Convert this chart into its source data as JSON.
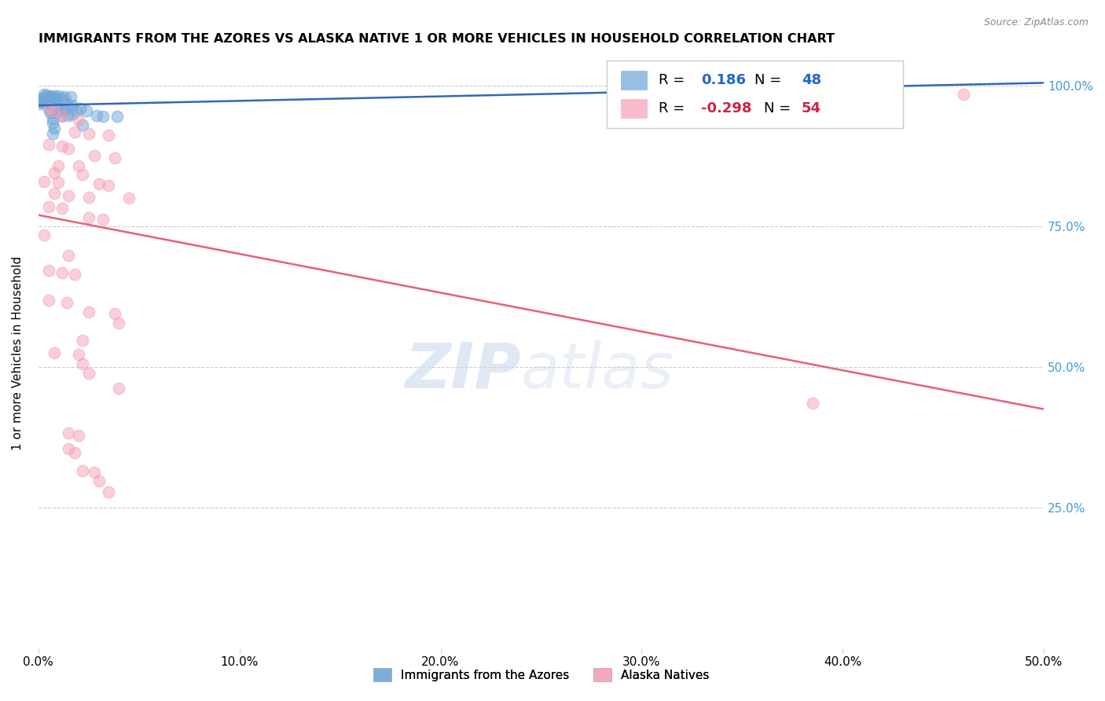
{
  "title": "IMMIGRANTS FROM THE AZORES VS ALASKA NATIVE 1 OR MORE VEHICLES IN HOUSEHOLD CORRELATION CHART",
  "source": "Source: ZipAtlas.com",
  "ylabel": "1 or more Vehicles in Household",
  "xlim": [
    0.0,
    0.5
  ],
  "ylim": [
    0.0,
    1.05
  ],
  "xtick_labels": [
    "0.0%",
    "10.0%",
    "20.0%",
    "30.0%",
    "40.0%",
    "50.0%"
  ],
  "xtick_values": [
    0.0,
    0.1,
    0.2,
    0.3,
    0.4,
    0.5
  ],
  "ytick_labels": [
    "25.0%",
    "50.0%",
    "75.0%",
    "100.0%"
  ],
  "ytick_values": [
    0.25,
    0.5,
    0.75,
    1.0
  ],
  "legend_labels": [
    "Immigrants from the Azores",
    "Alaska Natives"
  ],
  "blue_R": "0.186",
  "blue_N": "48",
  "pink_R": "-0.298",
  "pink_N": "54",
  "blue_color": "#6ea6d8",
  "pink_color": "#f4a0b5",
  "blue_line_color": "#3366bb",
  "pink_line_color": "#e8607a",
  "blue_line_x": [
    0.0,
    0.5
  ],
  "blue_line_y": [
    0.965,
    1.005
  ],
  "pink_line_x": [
    0.0,
    0.5
  ],
  "pink_line_y": [
    0.77,
    0.425
  ],
  "blue_points": [
    [
      0.003,
      0.985
    ],
    [
      0.004,
      0.983
    ],
    [
      0.006,
      0.982
    ],
    [
      0.008,
      0.982
    ],
    [
      0.01,
      0.982
    ],
    [
      0.013,
      0.981
    ],
    [
      0.016,
      0.981
    ],
    [
      0.003,
      0.979
    ],
    [
      0.005,
      0.979
    ],
    [
      0.007,
      0.979
    ],
    [
      0.009,
      0.978
    ],
    [
      0.012,
      0.978
    ],
    [
      0.002,
      0.976
    ],
    [
      0.004,
      0.976
    ],
    [
      0.006,
      0.976
    ],
    [
      0.008,
      0.976
    ],
    [
      0.003,
      0.974
    ],
    [
      0.005,
      0.974
    ],
    [
      0.001,
      0.972
    ],
    [
      0.003,
      0.972
    ],
    [
      0.007,
      0.972
    ],
    [
      0.002,
      0.97
    ],
    [
      0.004,
      0.97
    ],
    [
      0.006,
      0.97
    ],
    [
      0.001,
      0.968
    ],
    [
      0.014,
      0.968
    ],
    [
      0.017,
      0.965
    ],
    [
      0.021,
      0.96
    ],
    [
      0.008,
      0.96
    ],
    [
      0.011,
      0.96
    ],
    [
      0.005,
      0.958
    ],
    [
      0.009,
      0.958
    ],
    [
      0.013,
      0.958
    ],
    [
      0.019,
      0.955
    ],
    [
      0.024,
      0.955
    ],
    [
      0.006,
      0.952
    ],
    [
      0.009,
      0.952
    ],
    [
      0.017,
      0.95
    ],
    [
      0.012,
      0.947
    ],
    [
      0.015,
      0.947
    ],
    [
      0.029,
      0.947
    ],
    [
      0.032,
      0.945
    ],
    [
      0.039,
      0.945
    ],
    [
      0.007,
      0.942
    ],
    [
      0.007,
      0.935
    ],
    [
      0.022,
      0.93
    ],
    [
      0.008,
      0.925
    ],
    [
      0.007,
      0.915
    ]
  ],
  "pink_points": [
    [
      0.46,
      0.985
    ],
    [
      0.005,
      0.96
    ],
    [
      0.008,
      0.955
    ],
    [
      0.012,
      0.945
    ],
    [
      0.02,
      0.938
    ],
    [
      0.018,
      0.918
    ],
    [
      0.025,
      0.915
    ],
    [
      0.035,
      0.912
    ],
    [
      0.005,
      0.895
    ],
    [
      0.012,
      0.892
    ],
    [
      0.015,
      0.888
    ],
    [
      0.028,
      0.875
    ],
    [
      0.038,
      0.872
    ],
    [
      0.01,
      0.858
    ],
    [
      0.02,
      0.858
    ],
    [
      0.008,
      0.845
    ],
    [
      0.022,
      0.842
    ],
    [
      0.003,
      0.83
    ],
    [
      0.01,
      0.828
    ],
    [
      0.03,
      0.825
    ],
    [
      0.035,
      0.822
    ],
    [
      0.008,
      0.808
    ],
    [
      0.015,
      0.805
    ],
    [
      0.025,
      0.802
    ],
    [
      0.045,
      0.8
    ],
    [
      0.005,
      0.785
    ],
    [
      0.012,
      0.782
    ],
    [
      0.025,
      0.765
    ],
    [
      0.032,
      0.762
    ],
    [
      0.003,
      0.735
    ],
    [
      0.015,
      0.698
    ],
    [
      0.005,
      0.672
    ],
    [
      0.012,
      0.668
    ],
    [
      0.018,
      0.665
    ],
    [
      0.005,
      0.618
    ],
    [
      0.014,
      0.615
    ],
    [
      0.025,
      0.598
    ],
    [
      0.038,
      0.595
    ],
    [
      0.04,
      0.578
    ],
    [
      0.022,
      0.548
    ],
    [
      0.008,
      0.525
    ],
    [
      0.02,
      0.522
    ],
    [
      0.022,
      0.505
    ],
    [
      0.025,
      0.488
    ],
    [
      0.04,
      0.462
    ],
    [
      0.385,
      0.435
    ],
    [
      0.015,
      0.382
    ],
    [
      0.02,
      0.378
    ],
    [
      0.015,
      0.355
    ],
    [
      0.018,
      0.348
    ],
    [
      0.022,
      0.315
    ],
    [
      0.028,
      0.312
    ],
    [
      0.035,
      0.278
    ],
    [
      0.03,
      0.298
    ]
  ]
}
